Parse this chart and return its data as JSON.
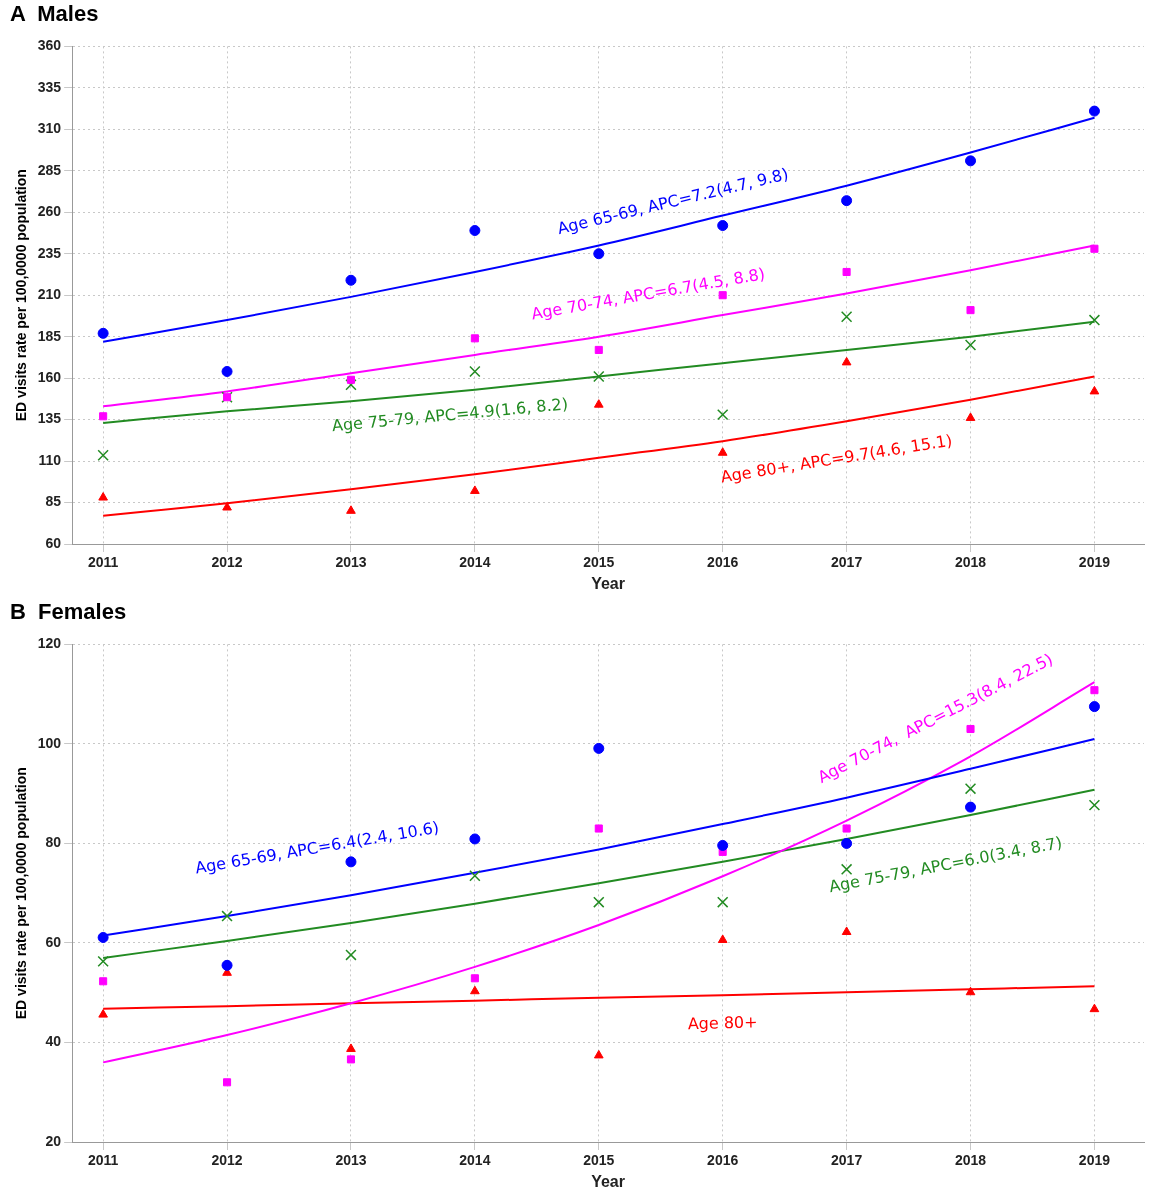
{
  "chart_data": [
    {
      "type": "scatter",
      "title": "A  Males",
      "xlabel": "Year",
      "ylabel": "ED visits rate per 100,0000 population",
      "x": [
        2011,
        2012,
        2013,
        2014,
        2015,
        2016,
        2017,
        2018,
        2019
      ],
      "xlim": [
        2010.75,
        2019.4
      ],
      "xticks": [
        2011,
        2012,
        2013,
        2014,
        2015,
        2016,
        2017,
        2018,
        2019
      ],
      "ylim": [
        60,
        360
      ],
      "yticks": [
        60,
        85,
        110,
        135,
        160,
        185,
        210,
        235,
        260,
        285,
        310,
        335,
        360
      ],
      "grid": true,
      "series": [
        {
          "marker": "circle",
          "color": "#0000ff",
          "values": [
            187,
            164,
            219,
            249,
            235,
            252,
            267,
            291,
            321
          ]
        },
        {
          "marker": "square",
          "color": "#ff00ff",
          "values": [
            137,
            148.5,
            159,
            184,
            177,
            210,
            224,
            201,
            238
          ]
        },
        {
          "marker": "cross",
          "color": "#228b22",
          "values": [
            113.5,
            148.5,
            156,
            164,
            161,
            138,
            197,
            180,
            195
          ]
        },
        {
          "marker": "triangle",
          "color": "#ff0000",
          "values": [
            88,
            82,
            80,
            92,
            144,
            115,
            169.5,
            136,
            152
          ]
        },
        {
          "type": "line",
          "marker": "none",
          "color": "#0000ff",
          "values": [
            182,
            195,
            209,
            224,
            240,
            258,
            276,
            296,
            317
          ]
        },
        {
          "type": "line",
          "marker": "none",
          "color": "#ff00ff",
          "values": [
            143,
            152,
            163,
            174,
            185,
            198,
            211,
            225,
            240
          ]
        },
        {
          "type": "line",
          "marker": "none",
          "color": "#228b22",
          "values": [
            133,
            140,
            146,
            153,
            161,
            169,
            177,
            185,
            194
          ]
        },
        {
          "type": "line",
          "marker": "none",
          "color": "#ff0000",
          "values": [
            77,
            84.5,
            93,
            102,
            112,
            122,
            134,
            147,
            161
          ]
        }
      ],
      "annotations": [
        "Age 65-69, APC=7.2(4.7, 9.8)",
        "Age 70-74, APC=6.7(4.5, 8.8)",
        "Age 75-79, APC=4.9(1.6, 8.2)",
        "Age 80+, APC=9.7(4.6, 15.1)"
      ]
    },
    {
      "type": "scatter",
      "title": "B  Females",
      "xlabel": "Year",
      "ylabel": "ED visits rate per 100,0000 population",
      "x": [
        2011,
        2012,
        2013,
        2014,
        2015,
        2016,
        2017,
        2018,
        2019
      ],
      "xlim": [
        2010.75,
        2019.4
      ],
      "xticks": [
        2011,
        2012,
        2013,
        2014,
        2015,
        2016,
        2017,
        2018,
        2019
      ],
      "ylim": [
        20,
        120
      ],
      "yticks": [
        20,
        40,
        60,
        80,
        100,
        120
      ],
      "grid": true,
      "series": [
        {
          "marker": "circle",
          "color": "#0000ff",
          "values": [
            61.1,
            55.5,
            76.3,
            80.9,
            99.1,
            79.6,
            80,
            87.3,
            107.5
          ]
        },
        {
          "marker": "square",
          "color": "#ff00ff",
          "values": [
            52.3,
            32,
            36.6,
            52.9,
            83,
            78.3,
            83,
            103,
            110.8
          ]
        },
        {
          "marker": "cross",
          "color": "#228b22",
          "values": [
            56.3,
            65.4,
            57.6,
            73.5,
            68.2,
            68.2,
            74.8,
            91,
            87.7
          ]
        },
        {
          "marker": "triangle",
          "color": "#ff0000",
          "values": [
            45.6,
            54,
            38.7,
            50.3,
            37.4,
            60.6,
            62.2,
            50.1,
            46.7
          ]
        },
        {
          "type": "line",
          "marker": "none",
          "color": "#0000ff",
          "values": [
            61.5,
            65.4,
            69.6,
            74.1,
            78.8,
            83.9,
            89.2,
            95,
            101
          ]
        },
        {
          "type": "line",
          "marker": "none",
          "color": "#ff00ff",
          "values": [
            36,
            41.5,
            47.9,
            55.2,
            63.6,
            73.4,
            84.6,
            97.5,
            112.4
          ]
        },
        {
          "type": "line",
          "marker": "none",
          "color": "#228b22",
          "values": [
            57,
            60.4,
            64,
            67.9,
            72,
            76.3,
            80.9,
            85.7,
            90.8
          ]
        },
        {
          "type": "line",
          "marker": "none",
          "color": "#ff0000",
          "values": [
            46.8,
            47.3,
            47.9,
            48.4,
            49,
            49.5,
            50.1,
            50.7,
            51.3
          ]
        }
      ],
      "annotations": [
        "Age 65-69, APC=6.4(2.4, 10.6)",
        "Age 70-74,  APC=15.3(8.4, 22.5)",
        "Age 75-79, APC=6.0(3.4, 8.7)",
        "Age 80+"
      ]
    }
  ]
}
